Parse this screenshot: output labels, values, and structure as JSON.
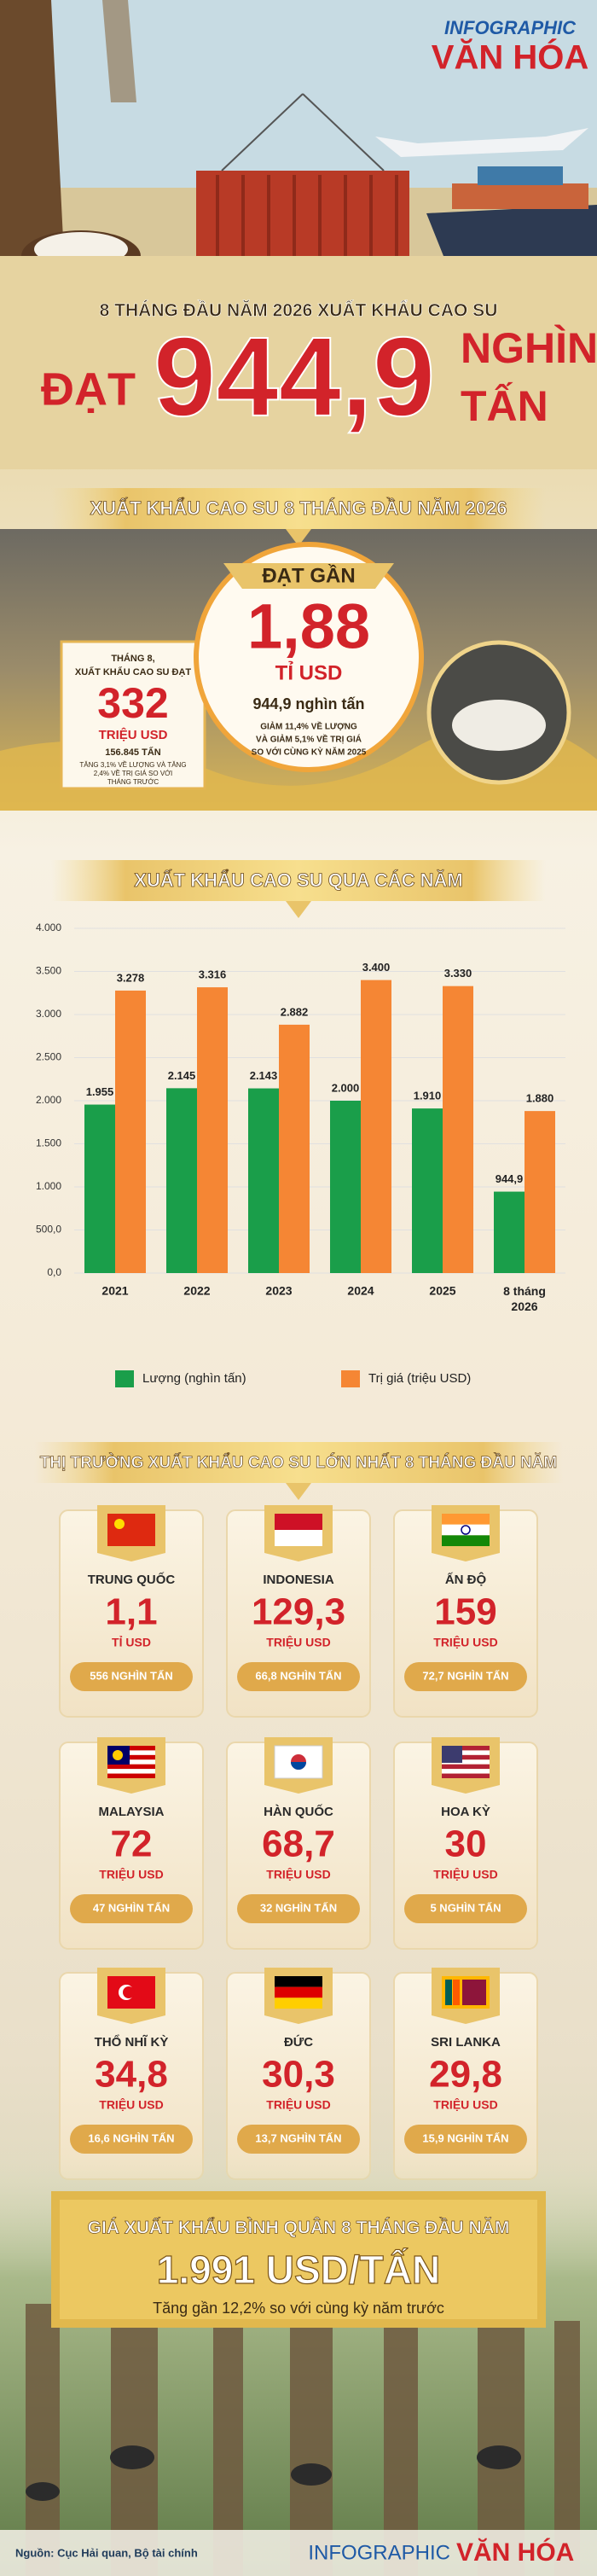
{
  "header": {
    "logo_top": "INFOGRAPHIC",
    "logo_bottom": "VĂN HÓA",
    "kicker": "8 THÁNG ĐẦU NĂM 2026 XUẤT KHẨU CAO SU",
    "lead": "ĐẠT",
    "number": "944,9",
    "unit_top": "NGHÌN",
    "unit_bottom": "TẤN"
  },
  "summary": {
    "banner": "XUẤT KHẨU CAO SU 8 THÁNG ĐẦU NĂM 2026",
    "august": {
      "lines": [
        "THÁNG 8,",
        "XUẤT KHẨU CAO SU ĐẠT"
      ],
      "value": "332",
      "unit": "TRIỆU USD",
      "volume": "156.845 TẤN",
      "note": [
        "TĂNG 3,1% VỀ LƯỢNG VÀ TĂNG",
        "2,4% VỀ TRỊ GIÁ SO VỚI",
        "THÁNG TRƯỚC"
      ]
    },
    "total": {
      "lead": "ĐẠT GẦN",
      "value": "1,88",
      "unit": "TỈ USD",
      "volume": "944,9 nghìn tấn",
      "note": [
        "GIẢM 11,4% VỀ LƯỢNG",
        "VÀ GIẢM 5,1% VỀ TRỊ GIÁ",
        "SO VỚI CÙNG KỲ NĂM 2025"
      ]
    }
  },
  "chart_data": {
    "type": "bar",
    "title": "XUẤT KHẨU CAO SU QUA CÁC NĂM",
    "categories": [
      "2021",
      "2022",
      "2023",
      "2024",
      "2025",
      "8 tháng 2026"
    ],
    "series": [
      {
        "name": "Lượng (nghìn tấn)",
        "color": "#1a9e4a",
        "values": [
          1955,
          2145,
          2143,
          2000,
          1910,
          944.9
        ],
        "value_labels": [
          "1.955",
          "2.145",
          "2.143",
          "2.000",
          "1.910",
          "944,9"
        ]
      },
      {
        "name": "Trị giá (triệu USD)",
        "color": "#f58634",
        "values": [
          3278,
          3316,
          2882,
          3400,
          3330,
          1880
        ],
        "value_labels": [
          "3.278",
          "3.316",
          "2.882",
          "3.400",
          "3.330",
          "1.880"
        ]
      }
    ],
    "ylim": [
      0,
      4000
    ],
    "yticks": [
      {
        "value": 0,
        "label": "0,0"
      },
      {
        "value": 500,
        "label": "500,0"
      },
      {
        "value": 1000,
        "label": "1.000"
      },
      {
        "value": 1500,
        "label": "1.500"
      },
      {
        "value": 2000,
        "label": "2.000"
      },
      {
        "value": 2500,
        "label": "2.500"
      },
      {
        "value": 3000,
        "label": "3.000"
      },
      {
        "value": 3500,
        "label": "3.500"
      },
      {
        "value": 4000,
        "label": "4.000"
      }
    ],
    "grid": true,
    "legend": "bottom"
  },
  "markets": {
    "banner": "THỊ TRƯỜNG XUẤT KHẨU CAO SU LỚN NHẤT 8 THÁNG ĐẦU NĂM",
    "items": [
      {
        "name": "TRUNG QUỐC",
        "value": "1,1",
        "unit": "TỈ USD",
        "volume": "556 NGHÌN TẤN"
      },
      {
        "name": "INDONESIA",
        "value": "129,3",
        "unit": "TRIỆU USD",
        "volume": "66,8 NGHÌN TẤN"
      },
      {
        "name": "ẤN ĐỘ",
        "value": "159",
        "unit": "TRIỆU USD",
        "volume": "72,7 NGHÌN TẤN"
      },
      {
        "name": "MALAYSIA",
        "value": "72",
        "unit": "TRIỆU USD",
        "volume": "47 NGHÌN TẤN"
      },
      {
        "name": "HÀN QUỐC",
        "value": "68,7",
        "unit": "TRIỆU USD",
        "volume": "32 NGHÌN TẤN"
      },
      {
        "name": "HOA KỲ",
        "value": "30",
        "unit": "TRIỆU USD",
        "volume": "5 NGHÌN TẤN"
      },
      {
        "name": "THỔ NHĨ KỲ",
        "value": "34,8",
        "unit": "TRIỆU USD",
        "volume": "16,6 NGHÌN TẤN"
      },
      {
        "name": "ĐỨC",
        "value": "30,3",
        "unit": "TRIỆU USD",
        "volume": "13,7 NGHÌN TẤN"
      },
      {
        "name": "SRI LANKA",
        "value": "29,8",
        "unit": "TRIỆU USD",
        "volume": "15,9 NGHÌN TẤN"
      }
    ]
  },
  "price": {
    "title": "GIÁ XUẤT KHẨU BÌNH QUÂN 8 THÁNG ĐẦU NĂM",
    "value": "1.991 USD/TẤN",
    "note": "Tăng gần 12,2% so với cùng kỳ năm trước"
  },
  "footer": {
    "source": "Nguồn: Cục Hải quan, Bộ tài chính",
    "logo_left": "INFOGRAPHIC",
    "logo_right": "VĂN HÓA"
  }
}
